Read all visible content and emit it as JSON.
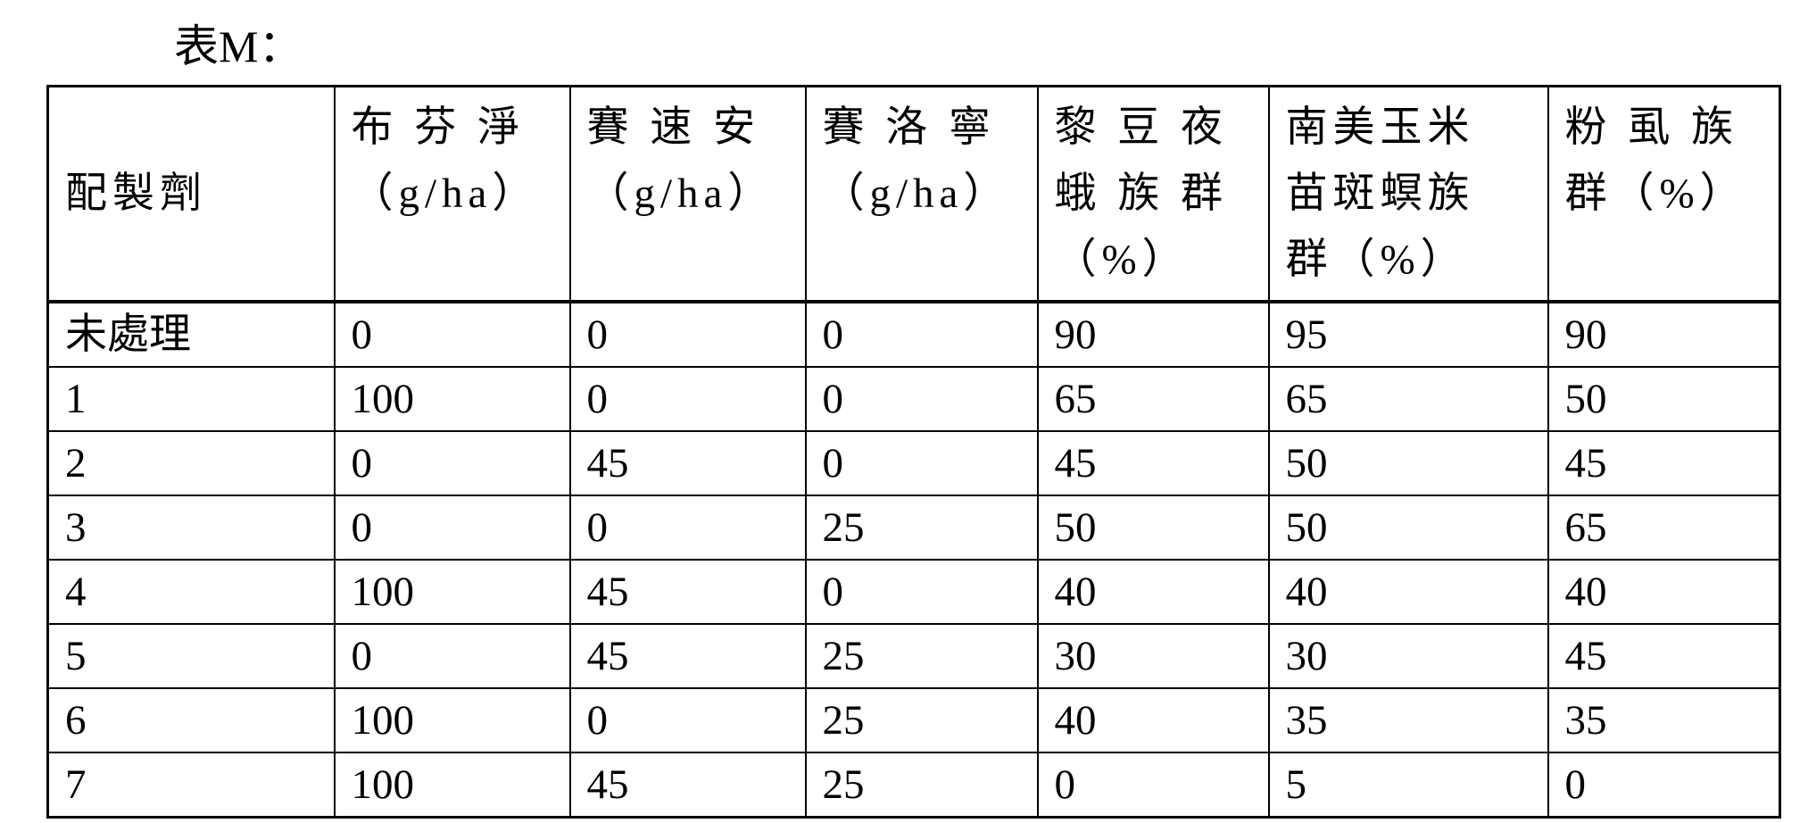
{
  "title": "表M：",
  "columns": [
    {
      "lines": [
        "配製劑"
      ]
    },
    {
      "lines": [
        "布 芬 淨",
        "（g/ha）"
      ]
    },
    {
      "lines": [
        "賽 速 安",
        "（g/ha）"
      ]
    },
    {
      "lines": [
        "賽 洛 寧",
        "（g/ha）"
      ]
    },
    {
      "lines": [
        "黎 豆 夜",
        "蛾 族 群",
        "（%）"
      ]
    },
    {
      "lines": [
        "南美玉米",
        "苗斑螟族",
        "群（%）"
      ]
    },
    {
      "lines": [
        "粉 虱 族",
        "群（%）"
      ]
    }
  ],
  "rows": [
    [
      "未處理",
      "0",
      "0",
      "0",
      "90",
      "95",
      "90"
    ],
    [
      "1",
      "100",
      "0",
      "0",
      "65",
      "65",
      "50"
    ],
    [
      "2",
      "0",
      "45",
      "0",
      "45",
      "50",
      "45"
    ],
    [
      "3",
      "0",
      "0",
      "25",
      "50",
      "50",
      "65"
    ],
    [
      "4",
      "100",
      "45",
      "0",
      "40",
      "40",
      "40"
    ],
    [
      "5",
      "0",
      "45",
      "25",
      "30",
      "30",
      "45"
    ],
    [
      "6",
      "100",
      "0",
      "25",
      "40",
      "35",
      "35"
    ],
    [
      "7",
      "100",
      "45",
      "25",
      "0",
      "5",
      "0"
    ]
  ]
}
